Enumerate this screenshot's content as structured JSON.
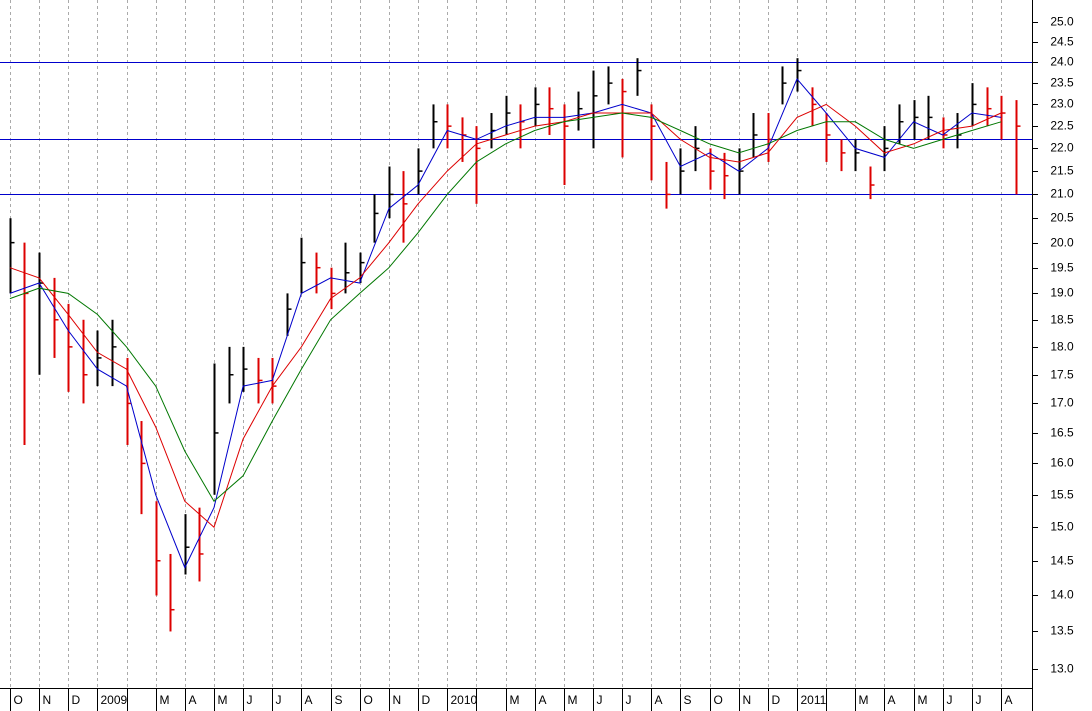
{
  "chart_data": {
    "type": "ohlc",
    "log_scale": true,
    "grid": true,
    "xlim": [
      -0.34,
      35.06
    ],
    "ylim": [
      12.75,
      25.56
    ],
    "yticks": [
      {
        "value": 13,
        "label": "13.0"
      },
      {
        "value": 13.5,
        "label": "13.5"
      },
      {
        "value": 14,
        "label": "14.0"
      },
      {
        "value": 14.5,
        "label": "14.5"
      },
      {
        "value": 15,
        "label": "15.0"
      },
      {
        "value": 15.5,
        "label": "15.5"
      },
      {
        "value": 16,
        "label": "16.0"
      },
      {
        "value": 16.5,
        "label": "16.5"
      },
      {
        "value": 17,
        "label": "17.0"
      },
      {
        "value": 17.5,
        "label": "17.5"
      },
      {
        "value": 18,
        "label": "18.0"
      },
      {
        "value": 18.5,
        "label": "18.5"
      },
      {
        "value": 19,
        "label": "19.0"
      },
      {
        "value": 19.5,
        "label": "19.5"
      },
      {
        "value": 20,
        "label": "20.0"
      },
      {
        "value": 20.5,
        "label": "20.5"
      },
      {
        "value": 21,
        "label": "21.0"
      },
      {
        "value": 21.5,
        "label": "21.5"
      },
      {
        "value": 22,
        "label": "22.0"
      },
      {
        "value": 22.5,
        "label": "22.5"
      },
      {
        "value": 23,
        "label": "23.0"
      },
      {
        "value": 23.5,
        "label": "23.5"
      },
      {
        "value": 24,
        "label": "24.0"
      },
      {
        "value": 24.5,
        "label": "24.5"
      },
      {
        "value": 25,
        "label": "25.0"
      }
    ],
    "categories": [
      "O",
      "N",
      "D",
      "2009",
      null,
      "M",
      "A",
      "M",
      "J",
      "J",
      "A",
      "S",
      "O",
      "N",
      "D",
      "2010",
      null,
      "M",
      "A",
      "M",
      "J",
      "J",
      "A",
      "S",
      "O",
      "N",
      "D",
      "2011",
      null,
      "M",
      "A",
      "M",
      "J",
      "J",
      "A"
    ],
    "x": [
      0,
      0.5,
      1,
      1.5,
      2,
      2.5,
      3,
      3.5,
      4,
      4.5,
      5,
      5.5,
      6,
      6.5,
      7,
      7.5,
      8,
      8.5,
      9,
      9.5,
      10,
      10.5,
      11,
      11.5,
      12,
      12.5,
      13,
      13.5,
      14,
      14.5,
      15,
      15.5,
      16,
      16.5,
      17,
      17.5,
      18,
      18.5,
      19,
      19.5,
      20,
      20.5,
      21,
      21.5,
      22,
      22.5,
      23,
      23.5,
      24,
      24.5,
      25,
      25.5,
      26,
      26.5,
      27,
      27.5,
      28,
      28.5,
      29,
      29.5,
      30,
      30.5,
      31,
      31.5,
      32,
      32.5,
      33,
      33.5,
      34,
      34.5
    ],
    "high": [
      20.5,
      20.0,
      19.8,
      19.3,
      18.8,
      18.5,
      18.3,
      18.5,
      17.8,
      16.7,
      15.4,
      14.6,
      15.2,
      15.3,
      17.7,
      18.0,
      18.0,
      17.8,
      17.8,
      19.0,
      20.1,
      19.8,
      19.5,
      20.0,
      19.8,
      21.0,
      21.6,
      21.5,
      22.0,
      23.0,
      23.0,
      22.7,
      22.5,
      22.8,
      23.2,
      23.0,
      23.4,
      23.4,
      23.0,
      23.3,
      23.8,
      23.9,
      23.6,
      24.1,
      23.0,
      21.7,
      22.0,
      22.5,
      22.0,
      21.9,
      22.0,
      22.8,
      22.8,
      23.9,
      24.1,
      23.4,
      22.8,
      22.2,
      22.2,
      21.6,
      22.5,
      23.0,
      23.1,
      23.2,
      22.7,
      22.8,
      23.5,
      23.4,
      23.2,
      23.1
    ],
    "low": [
      19.0,
      16.3,
      17.5,
      17.8,
      17.2,
      17.0,
      17.3,
      17.3,
      16.3,
      15.2,
      14.0,
      13.5,
      14.3,
      14.2,
      15.5,
      17.0,
      17.2,
      17.0,
      17.0,
      18.2,
      19.0,
      19.0,
      18.7,
      19.0,
      19.2,
      20.0,
      20.5,
      20.0,
      21.0,
      22.0,
      22.0,
      21.7,
      20.8,
      22.0,
      22.3,
      22.0,
      22.5,
      22.3,
      21.2,
      22.4,
      22.0,
      23.0,
      21.8,
      23.2,
      21.3,
      20.7,
      21.0,
      21.5,
      21.1,
      20.9,
      21.0,
      21.8,
      21.7,
      23.0,
      23.3,
      22.5,
      21.7,
      21.5,
      21.5,
      20.9,
      21.5,
      22.1,
      22.2,
      22.2,
      22.0,
      22.0,
      22.5,
      22.5,
      22.2,
      21.0
    ],
    "close": [
      20.0,
      19.0,
      19.2,
      18.5,
      18.0,
      17.5,
      17.8,
      18.0,
      17.0,
      16.0,
      14.5,
      13.8,
      14.7,
      14.6,
      16.5,
      17.5,
      17.6,
      17.4,
      17.3,
      18.7,
      19.6,
      19.5,
      19.0,
      19.4,
      19.6,
      20.6,
      21.0,
      20.8,
      21.5,
      22.6,
      22.5,
      22.3,
      22.0,
      22.4,
      22.8,
      22.6,
      23.0,
      22.9,
      22.5,
      22.9,
      23.2,
      23.5,
      23.3,
      23.8,
      22.5,
      21.0,
      21.5,
      22.0,
      21.5,
      21.4,
      21.5,
      22.3,
      22.2,
      23.5,
      23.8,
      23.0,
      22.3,
      21.9,
      21.9,
      21.2,
      22.0,
      22.6,
      22.7,
      22.7,
      22.3,
      22.3,
      23.0,
      22.9,
      22.8,
      22.5
    ],
    "up_color": "#000000",
    "down_color": "#dd0000",
    "series": [
      {
        "color": "#0000cc",
        "x": [
          0,
          1,
          2,
          3,
          4,
          5,
          6,
          7,
          8,
          9,
          10,
          11,
          12,
          13,
          14,
          15,
          16,
          17,
          18,
          19,
          20,
          21,
          22,
          23,
          24,
          25,
          26,
          27,
          28,
          29,
          30,
          31,
          32,
          33,
          34
        ],
        "values": [
          19.0,
          19.2,
          18.3,
          17.6,
          17.3,
          15.5,
          14.4,
          15.3,
          17.3,
          17.4,
          19.0,
          19.3,
          19.2,
          20.7,
          21.2,
          22.4,
          22.2,
          22.5,
          22.7,
          22.7,
          22.8,
          23.0,
          22.8,
          21.6,
          21.9,
          21.5,
          22.0,
          23.6,
          22.8,
          22.0,
          21.8,
          22.6,
          22.3,
          22.8,
          22.7
        ]
      },
      {
        "color": "#dd0000",
        "x": [
          0,
          1,
          2,
          3,
          4,
          5,
          6,
          7,
          8,
          9,
          10,
          11,
          12,
          13,
          14,
          15,
          16,
          17,
          18,
          19,
          20,
          21,
          22,
          23,
          24,
          25,
          26,
          27,
          28,
          29,
          30,
          31,
          32,
          33,
          34
        ],
        "values": [
          19.5,
          19.3,
          18.6,
          17.9,
          17.6,
          16.6,
          15.4,
          15.0,
          16.4,
          17.3,
          18.0,
          18.9,
          19.3,
          20.0,
          20.8,
          21.5,
          22.1,
          22.3,
          22.5,
          22.6,
          22.8,
          22.8,
          22.8,
          22.2,
          21.8,
          21.7,
          21.9,
          22.7,
          23.0,
          22.5,
          21.9,
          22.1,
          22.4,
          22.5,
          22.8
        ]
      },
      {
        "color": "#007700",
        "x": [
          0,
          1,
          2,
          3,
          4,
          5,
          6,
          7,
          8,
          9,
          10,
          11,
          12,
          13,
          14,
          15,
          16,
          17,
          18,
          19,
          20,
          21,
          22,
          23,
          24,
          25,
          26,
          27,
          28,
          29,
          30,
          31,
          32,
          33,
          34
        ],
        "values": [
          18.9,
          19.1,
          19.0,
          18.6,
          18.0,
          17.3,
          16.2,
          15.4,
          15.8,
          16.7,
          17.6,
          18.5,
          19.0,
          19.5,
          20.2,
          21.0,
          21.7,
          22.1,
          22.4,
          22.6,
          22.7,
          22.8,
          22.7,
          22.4,
          22.1,
          21.9,
          22.1,
          22.4,
          22.6,
          22.6,
          22.2,
          22.0,
          22.2,
          22.4,
          22.6
        ]
      }
    ],
    "hlines": [
      24.0,
      22.2,
      21.0
    ],
    "hline_color": "#0000cc"
  }
}
